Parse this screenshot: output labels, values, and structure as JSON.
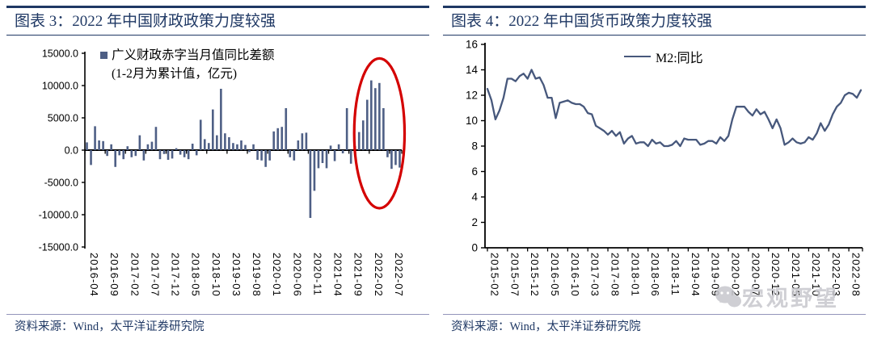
{
  "colors": {
    "navy": "#1f3864",
    "bar_blue": "#4e5f85",
    "line_blue": "#47587c",
    "red_circle": "#d40000",
    "footer_rule": "#9394bb",
    "watermark_gray": "#c7c7cd",
    "axis_black": "#000000"
  },
  "left_panel": {
    "title": "图表 3：2022 年中国财政政策力度较强",
    "legend": {
      "line1": "广义财政赤字当月值同比差额",
      "line2": "(1-2月为累计值，亿元)"
    },
    "source": "资料来源：Wind，太平洋证券研究院"
  },
  "right_panel": {
    "title": "图表 4：2022 年中国货币政策力度较强",
    "legend": {
      "label": "M2:同比"
    },
    "watermark": "宏观野望",
    "source": "资料来源：Wind，太平洋证券研究院"
  },
  "chart_data": [
    {
      "type": "bar",
      "title": "图表 3：2022 年中国财政政策力度较强",
      "series_name": "广义财政赤字当月值同比差额(1-2月为累计值，亿元)",
      "bar_color": "#4e5f85",
      "ylim": [
        -15000,
        15000
      ],
      "ytick_values": [
        15000,
        10000,
        5000,
        0,
        -5000,
        -10000,
        -15000
      ],
      "ytick_labels": [
        "15000.0",
        "10000.0",
        "5000.0",
        "0.0",
        "-5000.0",
        "-10000.0",
        "-15000.0"
      ],
      "xtick_every": 5,
      "xtick_labels": [
        "2016-04",
        "2016-09",
        "2017-02",
        "2017-07",
        "2017-12",
        "2018-05",
        "2018-10",
        "2019-03",
        "2019-08",
        "2020-01",
        "2020-06",
        "2020-11",
        "2021-04",
        "2021-09",
        "2022-02",
        "2022-07"
      ],
      "categories": [
        "2016-04",
        "2016-05",
        "2016-06",
        "2016-07",
        "2016-08",
        "2016-09",
        "2016-10",
        "2016-11",
        "2016-12",
        "2017-01",
        "2017-02",
        "2017-03",
        "2017-04",
        "2017-05",
        "2017-06",
        "2017-07",
        "2017-08",
        "2017-09",
        "2017-10",
        "2017-11",
        "2017-12",
        "2018-01",
        "2018-02",
        "2018-03",
        "2018-04",
        "2018-05",
        "2018-06",
        "2018-07",
        "2018-08",
        "2018-09",
        "2018-10",
        "2018-11",
        "2018-12",
        "2019-01",
        "2019-02",
        "2019-03",
        "2019-04",
        "2019-05",
        "2019-06",
        "2019-07",
        "2019-08",
        "2019-09",
        "2019-10",
        "2019-11",
        "2019-12",
        "2020-01",
        "2020-02",
        "2020-03",
        "2020-04",
        "2020-05",
        "2020-06",
        "2020-07",
        "2020-08",
        "2020-09",
        "2020-10",
        "2020-11",
        "2020-12",
        "2021-01",
        "2021-02",
        "2021-03",
        "2021-04",
        "2021-05",
        "2021-06",
        "2021-07",
        "2021-08",
        "2021-09",
        "2021-10",
        "2021-11",
        "2021-12",
        "2022-01",
        "2022-02",
        "2022-03",
        "2022-04",
        "2022-05",
        "2022-06",
        "2022-07",
        "2022-08",
        "2022-09"
      ],
      "values": [
        1200,
        -2300,
        3700,
        1500,
        1400,
        -900,
        900,
        -2600,
        -800,
        -1400,
        600,
        -1100,
        -900,
        2300,
        -1600,
        900,
        1300,
        3600,
        -1400,
        -600,
        -1500,
        -1300,
        300,
        -700,
        -1100,
        -1400,
        1000,
        -800,
        4700,
        1700,
        1100,
        6300,
        2300,
        9500,
        2600,
        2000,
        1100,
        900,
        1500,
        800,
        -300,
        900,
        -1500,
        -1600,
        -2600,
        -1600,
        2900,
        3400,
        3600,
        6500,
        -1100,
        -1600,
        1500,
        2600,
        2700,
        -10500,
        -6300,
        -2800,
        -2000,
        -2800,
        700,
        -1700,
        900,
        -500,
        6500,
        -2100,
        600,
        2800,
        4600,
        7800,
        10800,
        9600,
        10400,
        6500,
        -1100,
        -2900,
        -2300,
        -2700
      ],
      "annotation": {
        "shape": "ellipse",
        "color": "#d40000",
        "center_category": "2022-04",
        "center_value": 2600,
        "rx_categories": 6.2,
        "ry_value": 11600
      }
    },
    {
      "type": "line",
      "title": "图表 4：2022 年中国货币政策力度较强",
      "series_name": "M2:同比",
      "line_color": "#47587c",
      "ylim": [
        0,
        16
      ],
      "ytick_values": [
        16,
        14,
        12,
        10,
        8,
        6,
        4,
        2,
        0
      ],
      "ytick_labels": [
        "16",
        "14",
        "12",
        "10",
        "8",
        "6",
        "4",
        "2",
        "0"
      ],
      "xtick_every": 5,
      "xtick_labels": [
        "2015-02",
        "2015-07",
        "2015-12",
        "2016-05",
        "2016-10",
        "2017-03",
        "2017-08",
        "2018-01",
        "2018-06",
        "2018-11",
        "2019-04",
        "2019-09",
        "2020-02",
        "2020-07",
        "2020-12",
        "2021-05",
        "2021-10",
        "2022-03",
        "2022-08"
      ],
      "categories": [
        "2015-02",
        "2015-03",
        "2015-04",
        "2015-05",
        "2015-06",
        "2015-07",
        "2015-08",
        "2015-09",
        "2015-10",
        "2015-11",
        "2015-12",
        "2016-01",
        "2016-02",
        "2016-03",
        "2016-04",
        "2016-05",
        "2016-06",
        "2016-07",
        "2016-08",
        "2016-09",
        "2016-10",
        "2016-11",
        "2016-12",
        "2017-01",
        "2017-02",
        "2017-03",
        "2017-04",
        "2017-05",
        "2017-06",
        "2017-07",
        "2017-08",
        "2017-09",
        "2017-10",
        "2017-11",
        "2017-12",
        "2018-01",
        "2018-02",
        "2018-03",
        "2018-04",
        "2018-05",
        "2018-06",
        "2018-07",
        "2018-08",
        "2018-09",
        "2018-10",
        "2018-11",
        "2018-12",
        "2019-01",
        "2019-02",
        "2019-03",
        "2019-04",
        "2019-05",
        "2019-06",
        "2019-07",
        "2019-08",
        "2019-09",
        "2019-10",
        "2019-11",
        "2019-12",
        "2020-01",
        "2020-02",
        "2020-03",
        "2020-04",
        "2020-05",
        "2020-06",
        "2020-07",
        "2020-08",
        "2020-09",
        "2020-10",
        "2020-11",
        "2020-12",
        "2021-01",
        "2021-02",
        "2021-03",
        "2021-04",
        "2021-05",
        "2021-06",
        "2021-07",
        "2021-08",
        "2021-09",
        "2021-10",
        "2021-11",
        "2021-12",
        "2022-01",
        "2022-02",
        "2022-03",
        "2022-04",
        "2022-05",
        "2022-06",
        "2022-07",
        "2022-08",
        "2022-09",
        "2022-10",
        "2022-11"
      ],
      "values": [
        12.5,
        11.6,
        10.1,
        10.8,
        11.8,
        13.3,
        13.3,
        13.1,
        13.5,
        13.7,
        13.3,
        14.0,
        13.3,
        13.4,
        12.8,
        11.8,
        11.8,
        10.2,
        11.4,
        11.5,
        11.6,
        11.4,
        11.3,
        11.3,
        11.1,
        10.6,
        10.5,
        9.6,
        9.4,
        9.2,
        8.9,
        9.2,
        8.8,
        9.1,
        8.2,
        8.6,
        8.8,
        8.2,
        8.3,
        8.3,
        8.0,
        8.5,
        8.2,
        8.3,
        8.0,
        8.0,
        8.1,
        8.4,
        8.0,
        8.6,
        8.5,
        8.5,
        8.5,
        8.1,
        8.2,
        8.4,
        8.4,
        8.2,
        8.7,
        8.4,
        8.8,
        10.1,
        11.1,
        11.1,
        11.1,
        10.7,
        10.4,
        10.9,
        10.5,
        10.7,
        10.1,
        9.4,
        10.1,
        9.4,
        8.1,
        8.3,
        8.6,
        8.3,
        8.2,
        8.3,
        8.7,
        8.5,
        9.0,
        9.8,
        9.2,
        9.7,
        10.5,
        11.1,
        11.4,
        12.0,
        12.2,
        12.1,
        11.8,
        12.4
      ]
    }
  ]
}
